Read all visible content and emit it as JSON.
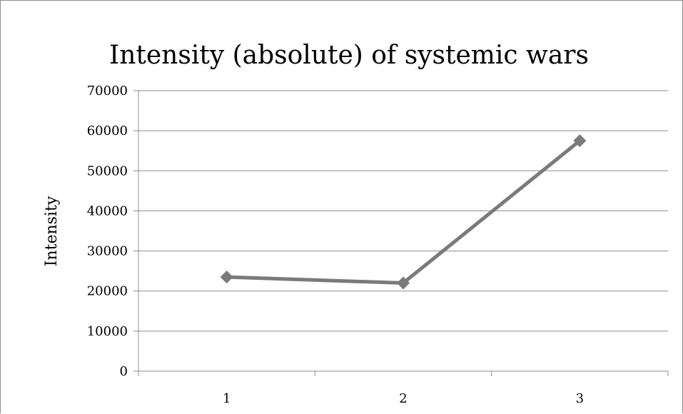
{
  "chart_data": {
    "type": "line",
    "title": "Intensity (absolute) of systemic wars",
    "xlabel": "",
    "ylabel": "Intensity",
    "categories": [
      "1",
      "2",
      "3"
    ],
    "series": [
      {
        "values": [
          23500,
          22000,
          57500
        ],
        "color": "#7a7a7a",
        "marker": "diamond"
      }
    ],
    "ylim": [
      0,
      70000
    ],
    "yticks": [
      0,
      10000,
      20000,
      30000,
      40000,
      50000,
      60000,
      70000
    ],
    "grid": true,
    "legend": "none"
  },
  "colors": {
    "gridline": "#8c8c8c",
    "series": "#7a7a7a",
    "background": "#ffffff"
  }
}
